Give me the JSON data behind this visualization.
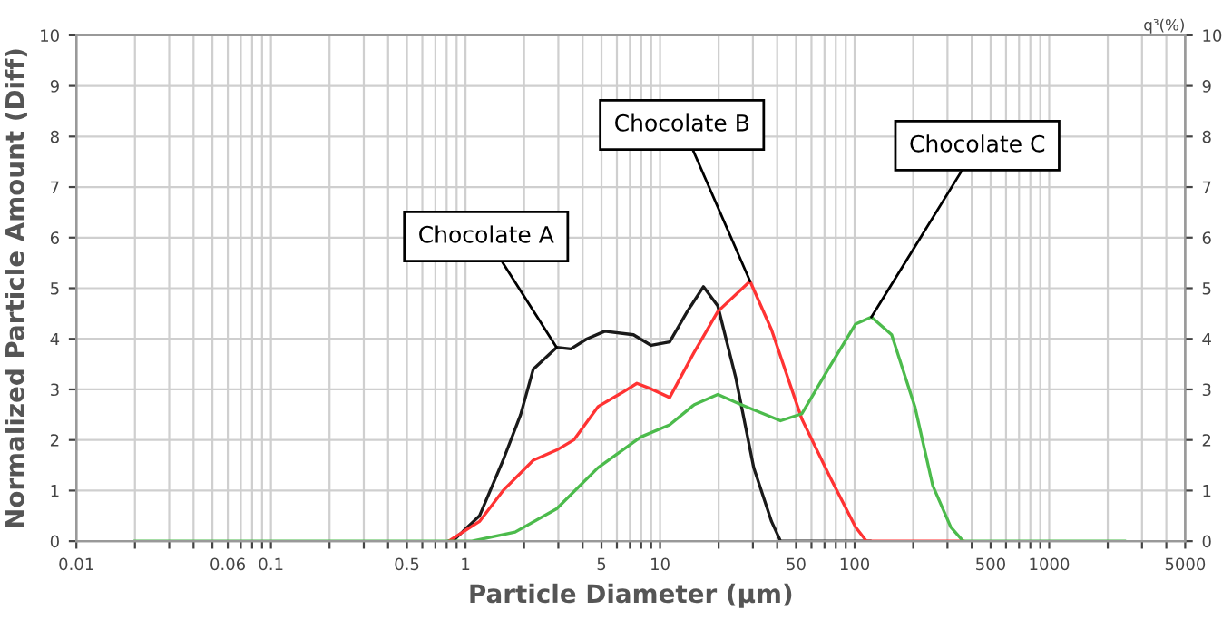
{
  "chart_data": {
    "type": "line",
    "xlabel": "Particle Diameter (µm)",
    "ylabel": "Normalized Particle Amount (Diff)",
    "y2label": "q³(%)",
    "log": "x",
    "grid": true,
    "marker": "none",
    "line_style": "solid",
    "xlim": [
      0.01,
      5000
    ],
    "ylim": [
      0,
      10
    ],
    "y2lim": [
      0,
      10
    ],
    "yticks": [
      0,
      1,
      2,
      3,
      4,
      5,
      6,
      7,
      8,
      9,
      10
    ],
    "y2ticks": [
      0,
      1,
      2,
      3,
      4,
      5,
      6,
      7,
      8,
      9,
      10
    ],
    "xticks": [
      0.01,
      {
        "value": 0.02,
        "label": null
      },
      {
        "value": 0.03,
        "label": null
      },
      {
        "value": 0.04,
        "label": null
      },
      {
        "value": 0.05,
        "label": null
      },
      {
        "value": 0.06,
        "label": "0.06"
      },
      {
        "value": 0.07,
        "label": null
      },
      {
        "value": 0.08,
        "label": null
      },
      {
        "value": 0.09,
        "label": null
      },
      0.1,
      {
        "value": 0.2,
        "label": null
      },
      {
        "value": 0.3,
        "label": null
      },
      {
        "value": 0.4,
        "label": null
      },
      0.5,
      {
        "value": 0.6,
        "label": null
      },
      {
        "value": 0.7,
        "label": null
      },
      {
        "value": 0.8,
        "label": null
      },
      {
        "value": 0.9,
        "label": null
      },
      1,
      {
        "value": 2,
        "label": null
      },
      {
        "value": 3,
        "label": null
      },
      {
        "value": 4,
        "label": null
      },
      5,
      {
        "value": 6,
        "label": null
      },
      {
        "value": 7,
        "label": null
      },
      {
        "value": 8,
        "label": null
      },
      {
        "value": 9,
        "label": null
      },
      10,
      {
        "value": 20,
        "label": null
      },
      {
        "value": 30,
        "label": null
      },
      {
        "value": 40,
        "label": null
      },
      50,
      {
        "value": 60,
        "label": null
      },
      {
        "value": 70,
        "label": null
      },
      {
        "value": 80,
        "label": null
      },
      {
        "value": 90,
        "label": null
      },
      100,
      {
        "value": 200,
        "label": null
      },
      {
        "value": 300,
        "label": null
      },
      {
        "value": 400,
        "label": null
      },
      500,
      {
        "value": 600,
        "label": null
      },
      {
        "value": 700,
        "label": null
      },
      {
        "value": 800,
        "label": null
      },
      {
        "value": 900,
        "label": null
      },
      1000,
      {
        "value": 2000,
        "label": null
      },
      {
        "value": 3000,
        "label": null
      },
      {
        "value": 4000,
        "label": null
      },
      5000
    ],
    "series": [
      {
        "color": "#1a1a1a",
        "x": [
          0.82,
          0.88,
          1.18,
          1.56,
          1.92,
          2.23,
          2.94,
          3.48,
          4.21,
          5.2,
          7.3,
          9.0,
          11.2,
          13.8,
          16.7,
          19.8,
          24.5,
          30.3,
          37.4,
          41.6,
          120
        ],
        "values": [
          0,
          0.04,
          0.5,
          1.6,
          2.5,
          3.4,
          3.83,
          3.8,
          4.0,
          4.15,
          4.08,
          3.87,
          3.94,
          4.54,
          5.03,
          4.65,
          3.23,
          1.45,
          0.39,
          0,
          0
        ]
      },
      {
        "color": "#ff3333",
        "x": [
          0.82,
          1.18,
          1.56,
          2.23,
          2.94,
          3.6,
          4.8,
          6.4,
          7.6,
          9.0,
          11.2,
          14.9,
          19.8,
          29.0,
          37.4,
          53.6,
          75.3,
          101,
          115,
          361
        ],
        "values": [
          0,
          0.39,
          1.0,
          1.6,
          1.8,
          2.0,
          2.66,
          2.94,
          3.12,
          3.01,
          2.84,
          3.72,
          4.54,
          5.14,
          4.18,
          2.41,
          1.24,
          0.28,
          0,
          0
        ]
      },
      {
        "color": "#4cbb4c",
        "x": [
          0.02,
          0.82,
          1.08,
          1.8,
          2.94,
          4.79,
          7.96,
          11.2,
          15.0,
          19.8,
          26.1,
          41.6,
          53.6,
          75.3,
          101,
          122,
          155,
          204,
          252,
          312,
          361,
          2440
        ],
        "values": [
          0,
          0,
          0,
          0.18,
          0.64,
          1.45,
          2.06,
          2.3,
          2.7,
          2.9,
          2.7,
          2.38,
          2.52,
          3.48,
          4.29,
          4.43,
          4.08,
          2.66,
          1.1,
          0.28,
          0,
          0
        ]
      }
    ],
    "annotations": [
      {
        "text": "Chocolate A",
        "x": 2.94,
        "y": 3.83
      },
      {
        "text": "Chocolate B",
        "x": 29.0,
        "y": 5.14
      },
      {
        "text": "Chocolate C",
        "x": 122,
        "y": 4.43
      }
    ]
  }
}
